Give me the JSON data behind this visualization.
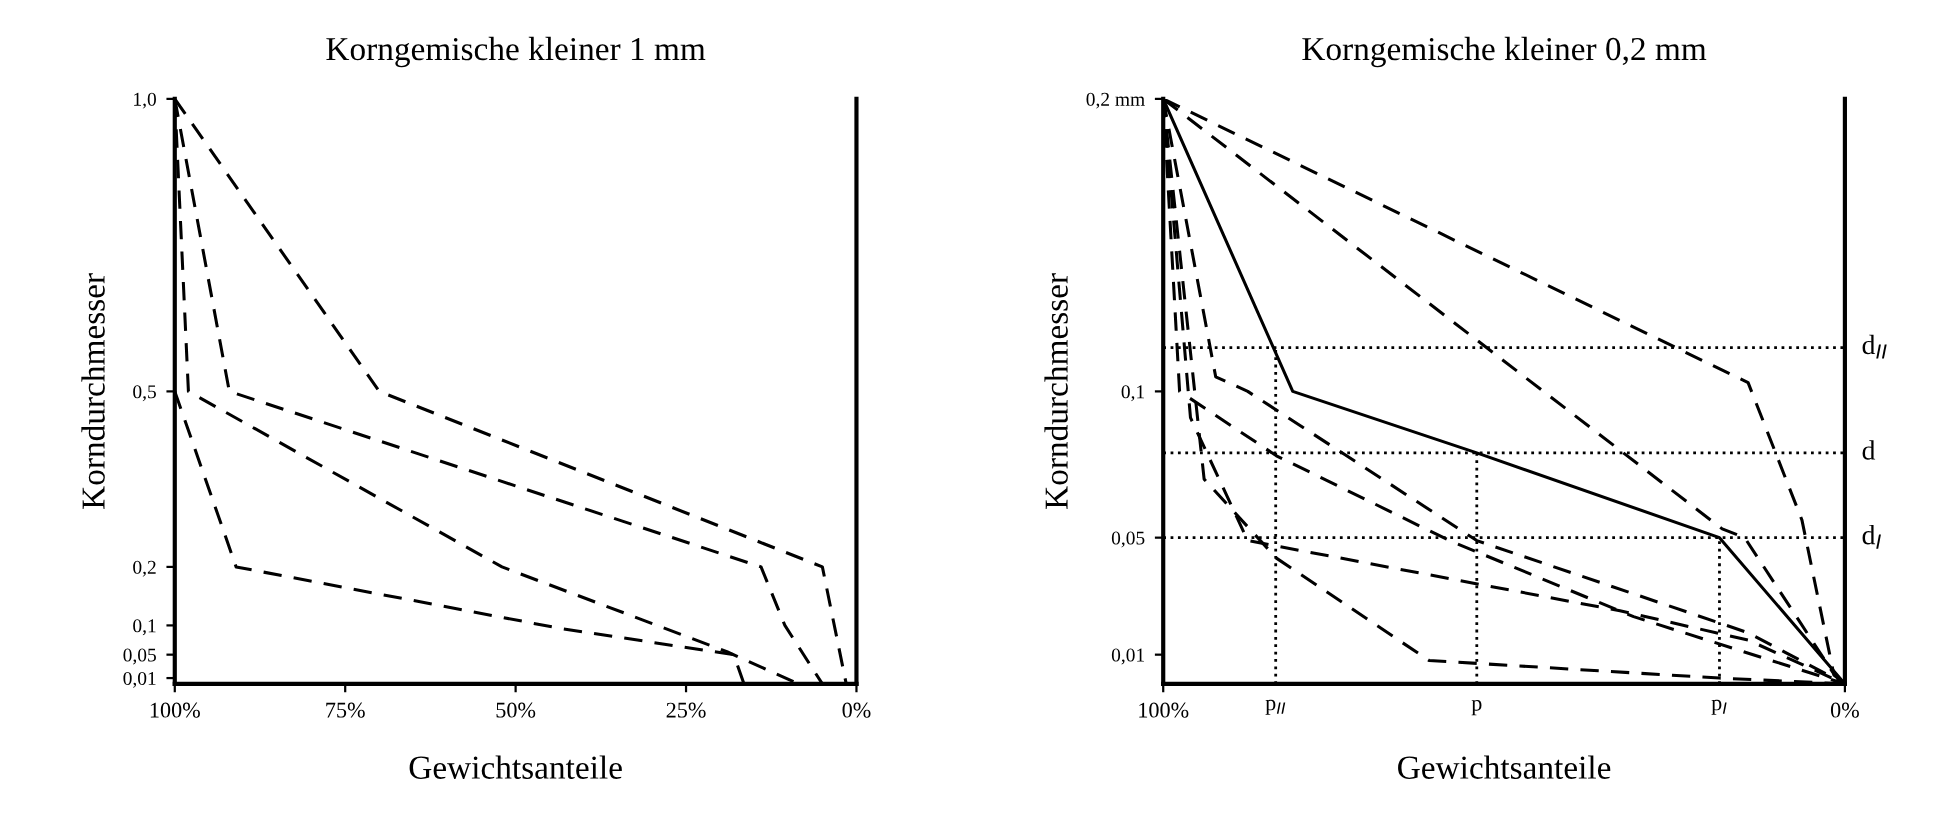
{
  "chart_data": [
    {
      "type": "line",
      "title": "Korngemische kleiner 1 mm",
      "xlabel": "Gewichtsanteile",
      "ylabel": "Korndurchmesser",
      "xlim": [
        100,
        0
      ],
      "ylim": [
        0,
        1.0
      ],
      "grid": false,
      "legend": false,
      "xticks": [
        {
          "value": 100,
          "label": "100%"
        },
        {
          "value": 75,
          "label": "75%"
        },
        {
          "value": 50,
          "label": "50%"
        },
        {
          "value": 25,
          "label": "25%"
        },
        {
          "value": 0,
          "label": "0%"
        }
      ],
      "yticks": [
        {
          "value": 1.0,
          "label": "1,0"
        },
        {
          "value": 0.5,
          "label": "0,5"
        },
        {
          "value": 0.2,
          "label": "0,2"
        },
        {
          "value": 0.1,
          "label": "0,1"
        },
        {
          "value": 0.05,
          "label": "0,05"
        },
        {
          "value": 0.01,
          "label": "0,01"
        }
      ],
      "series": [
        {
          "color": "#000000",
          "line_style": "dashed",
          "x": [
            100,
            70,
            5,
            1.5
          ],
          "values": [
            1.0,
            0.5,
            0.2,
            0
          ]
        },
        {
          "color": "#000000",
          "line_style": "dashed",
          "x": [
            100,
            92,
            14,
            10.5,
            5
          ],
          "values": [
            1.0,
            0.5,
            0.2,
            0.1,
            0
          ]
        },
        {
          "color": "#000000",
          "line_style": "dashed",
          "x": [
            100,
            98,
            52,
            19,
            8.5
          ],
          "values": [
            1.0,
            0.5,
            0.2,
            0.055,
            0
          ]
        },
        {
          "color": "#000000",
          "line_style": "dashed",
          "x": [
            100,
            91,
            43.5,
            18,
            16.5
          ],
          "values": [
            0.5,
            0.2,
            0.095,
            0.05,
            0
          ]
        }
      ]
    },
    {
      "type": "line",
      "title": "Korngemische kleiner 0,2 mm",
      "xlabel": "Gewichtsanteile",
      "ylabel": "Korndurchmesser",
      "xlim": [
        100,
        0
      ],
      "ylim": [
        0,
        0.2
      ],
      "grid": false,
      "legend": false,
      "xticks": [
        {
          "value": 100,
          "label": "100%"
        },
        {
          "value": 0,
          "label": "0%"
        }
      ],
      "yticks": [
        {
          "value": 0.2,
          "label": "0,2 mm"
        },
        {
          "value": 0.1,
          "label": "0,1"
        },
        {
          "value": 0.05,
          "label": "0,05"
        },
        {
          "value": 0.01,
          "label": "0,01"
        }
      ],
      "ref_lines": [
        {
          "axis": "y",
          "value": 0.115,
          "label": "d$_{II}$",
          "line_style": "dotted"
        },
        {
          "axis": "y",
          "value": 0.079,
          "label": "d",
          "line_style": "dotted"
        },
        {
          "axis": "y",
          "value": 0.05,
          "label": "d$_{I}$",
          "line_style": "dotted"
        },
        {
          "axis": "x",
          "value": 83.5,
          "label": "p$_{II}$",
          "line_style": "dotted"
        },
        {
          "axis": "x",
          "value": 54,
          "label": "p",
          "line_style": "dotted"
        },
        {
          "axis": "x",
          "value": 18.4,
          "label": "p$_{I}$",
          "line_style": "dotted"
        }
      ],
      "series": [
        {
          "color": "#000000",
          "line_style": "solid",
          "x": [
            100,
            81,
            54,
            18.4,
            0
          ],
          "values": [
            0.2,
            0.1,
            0.079,
            0.05,
            0
          ]
        },
        {
          "color": "#000000",
          "line_style": "dashed",
          "x": [
            100,
            14.2,
            6.3,
            1.6,
            0
          ],
          "values": [
            0.2,
            0.103,
            0.056,
            0.003,
            0
          ]
        },
        {
          "color": "#000000",
          "line_style": "dashed",
          "x": [
            100,
            18,
            14.7,
            1.5,
            0
          ],
          "values": [
            0.2,
            0.053,
            0.05,
            0.003,
            0
          ]
        },
        {
          "color": "#000000",
          "line_style": "dashed",
          "x": [
            100,
            92.3,
            87.6,
            54,
            14.2,
            0
          ],
          "values": [
            0.2,
            0.105,
            0.1,
            0.049,
            0.0175,
            0
          ]
        },
        {
          "color": "#000000",
          "line_style": "dashed",
          "x": [
            100,
            97.6,
            83.4,
            58,
            31,
            0
          ],
          "values": [
            0.2,
            0.1,
            0.078,
            0.049,
            0.023,
            0
          ]
        },
        {
          "color": "#000000",
          "line_style": "dashed",
          "x": [
            100,
            96,
            87.6,
            33,
            14.2,
            0
          ],
          "values": [
            0.2,
            0.091,
            0.049,
            0.025,
            0.015,
            0
          ]
        },
        {
          "color": "#000000",
          "line_style": "dashed",
          "x": [
            100,
            94,
            83.4,
            61,
            18.4,
            0
          ],
          "values": [
            0.2,
            0.07,
            0.043,
            0.008,
            0.002,
            0
          ]
        }
      ]
    }
  ]
}
